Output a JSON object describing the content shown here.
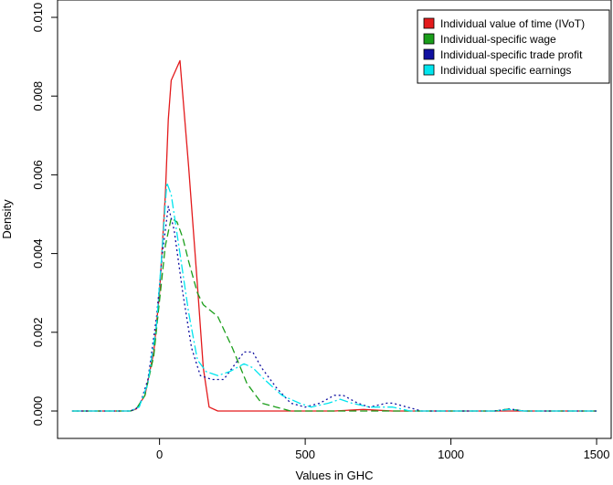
{
  "chart_data": {
    "type": "line",
    "xlabel": "Values in GHC",
    "ylabel": "Density",
    "xlim": [
      -350,
      1550
    ],
    "ylim": [
      0,
      0.01
    ],
    "x_ticks": [
      0,
      500,
      1000,
      1500
    ],
    "x_tick_labels": [
      "0",
      "500",
      "1000",
      "1500"
    ],
    "y_ticks": [
      0,
      0.002,
      0.004,
      0.006,
      0.008,
      0.01
    ],
    "y_tick_labels": [
      "0.000",
      "0.002",
      "0.004",
      "0.006",
      "0.008",
      "0.010"
    ],
    "grid": false,
    "legend_position": "top-right",
    "series": [
      {
        "name": "Individual value of time (IVoT)",
        "color": "#e31a1c",
        "dash": "solid",
        "points": [
          [
            -300,
            0
          ],
          [
            -100,
            0
          ],
          [
            -80,
            5e-05
          ],
          [
            -50,
            0.0004
          ],
          [
            -20,
            0.0015
          ],
          [
            0,
            0.003
          ],
          [
            20,
            0.0055
          ],
          [
            30,
            0.0074
          ],
          [
            40,
            0.0084
          ],
          [
            70,
            0.0089
          ],
          [
            100,
            0.0062
          ],
          [
            130,
            0.0032
          ],
          [
            150,
            0.0011
          ],
          [
            170,
            0.0001
          ],
          [
            200,
            0
          ],
          [
            600,
            0
          ],
          [
            700,
            4e-05
          ],
          [
            800,
            0
          ],
          [
            1500,
            0
          ]
        ]
      },
      {
        "name": "Individual-specific wage",
        "color": "#1a9e1a",
        "dash": "8,4",
        "points": [
          [
            -300,
            0
          ],
          [
            -100,
            0
          ],
          [
            -80,
            5e-05
          ],
          [
            -50,
            0.0004
          ],
          [
            -20,
            0.0014
          ],
          [
            0,
            0.0028
          ],
          [
            20,
            0.0042
          ],
          [
            40,
            0.0049
          ],
          [
            60,
            0.0048
          ],
          [
            80,
            0.0044
          ],
          [
            100,
            0.0038
          ],
          [
            130,
            0.003
          ],
          [
            150,
            0.0027
          ],
          [
            200,
            0.0024
          ],
          [
            250,
            0.0016
          ],
          [
            300,
            0.0007
          ],
          [
            350,
            0.0002
          ],
          [
            400,
            0.0001
          ],
          [
            450,
            0
          ],
          [
            1150,
            0
          ],
          [
            1200,
            5e-05
          ],
          [
            1250,
            0
          ],
          [
            1500,
            0
          ]
        ]
      },
      {
        "name": "Individual-specific trade profit",
        "color": "#1010a0",
        "dash": "2,3",
        "points": [
          [
            -300,
            0
          ],
          [
            -100,
            0
          ],
          [
            -70,
            0.0001
          ],
          [
            -40,
            0.0008
          ],
          [
            -10,
            0.0024
          ],
          [
            10,
            0.004
          ],
          [
            30,
            0.0052
          ],
          [
            50,
            0.0046
          ],
          [
            80,
            0.003
          ],
          [
            110,
            0.0016
          ],
          [
            140,
            0.0009
          ],
          [
            180,
            0.0008
          ],
          [
            220,
            0.0008
          ],
          [
            260,
            0.0012
          ],
          [
            290,
            0.0015
          ],
          [
            320,
            0.0015
          ],
          [
            350,
            0.0011
          ],
          [
            400,
            0.0006
          ],
          [
            450,
            0.0002
          ],
          [
            500,
            0.0001
          ],
          [
            550,
            0.0002
          ],
          [
            600,
            0.0004
          ],
          [
            630,
            0.0004
          ],
          [
            680,
            0.0002
          ],
          [
            720,
            0.0001
          ],
          [
            780,
            0.0002
          ],
          [
            800,
            0.0002
          ],
          [
            850,
            0.0001
          ],
          [
            900,
            0
          ],
          [
            1150,
            0
          ],
          [
            1200,
            5e-05
          ],
          [
            1250,
            0
          ],
          [
            1500,
            0
          ]
        ]
      },
      {
        "name": "Individual specific earnings",
        "color": "#00e5ee",
        "dash": "10,3,2,3",
        "points": [
          [
            -300,
            0
          ],
          [
            -100,
            0
          ],
          [
            -70,
            0.0001
          ],
          [
            -40,
            0.0007
          ],
          [
            -10,
            0.0022
          ],
          [
            10,
            0.0042
          ],
          [
            25,
            0.0058
          ],
          [
            40,
            0.0055
          ],
          [
            70,
            0.004
          ],
          [
            100,
            0.0025
          ],
          [
            130,
            0.0013
          ],
          [
            160,
            0.001
          ],
          [
            200,
            0.0009
          ],
          [
            240,
            0.001
          ],
          [
            290,
            0.0012
          ],
          [
            320,
            0.0011
          ],
          [
            360,
            0.0008
          ],
          [
            420,
            0.0004
          ],
          [
            480,
            0.0002
          ],
          [
            520,
            0.0001
          ],
          [
            580,
            0.0002
          ],
          [
            620,
            0.0003
          ],
          [
            660,
            0.0002
          ],
          [
            720,
            0.0001
          ],
          [
            780,
            0.0001
          ],
          [
            800,
            0.0001
          ],
          [
            860,
            0
          ],
          [
            1150,
            0
          ],
          [
            1200,
            4e-05
          ],
          [
            1250,
            0
          ],
          [
            1500,
            0
          ]
        ]
      }
    ]
  }
}
